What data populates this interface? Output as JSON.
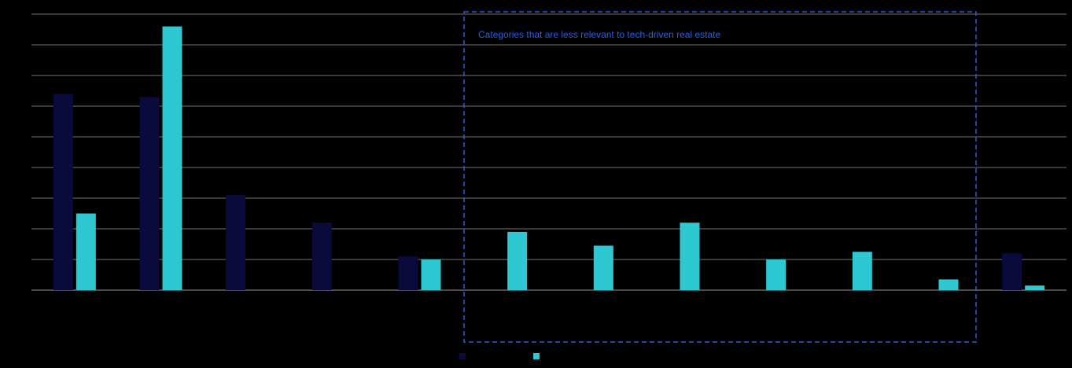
{
  "colors": {
    "background": "#000000",
    "grid": "#9a9a9a",
    "series_dark": "#0a0a3c",
    "series_cyan": "#2ec8d2",
    "annotation": "#2a5fd8",
    "muted_label": "#0d0d3a"
  },
  "annotation": {
    "text": "Categories that are less relevant to tech-driven real estate"
  },
  "chart_data": {
    "type": "bar",
    "title": "",
    "xlabel": "",
    "ylabel": "",
    "ylim": [
      0,
      9
    ],
    "grid": true,
    "legend_position": "bottom",
    "categories": [
      "",
      "",
      "",
      "",
      "",
      "",
      "",
      "",
      "",
      "",
      "",
      ""
    ],
    "series": [
      {
        "name": "",
        "color_key": "series_dark",
        "values": [
          6.4,
          6.3,
          3.1,
          2.2,
          1.1,
          null,
          null,
          null,
          null,
          null,
          null,
          1.2
        ]
      },
      {
        "name": "",
        "color_key": "series_cyan",
        "values": [
          2.5,
          8.6,
          null,
          null,
          1.0,
          1.9,
          1.45,
          2.2,
          1.0,
          1.25,
          0.35,
          0.15
        ]
      }
    ]
  }
}
